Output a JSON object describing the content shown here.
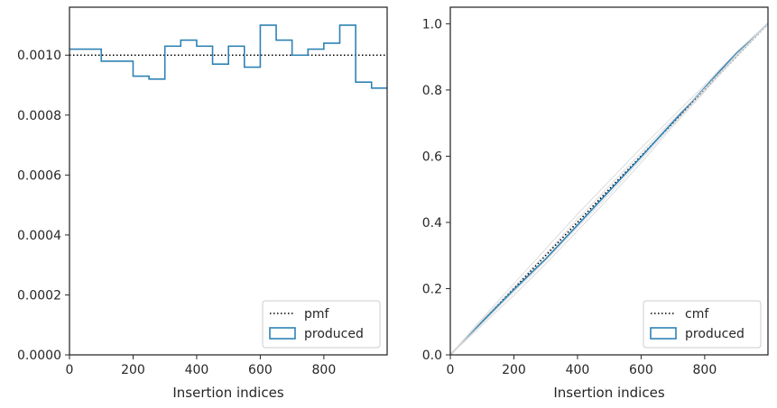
{
  "chart_data": [
    {
      "type": "line",
      "subtype": "step-histogram",
      "title": "",
      "xlabel": "Insertion indices",
      "ylabel": "",
      "xlim": [
        0,
        999
      ],
      "ylim": [
        0,
        0.00116
      ],
      "xticks": [
        0,
        200,
        400,
        600,
        800
      ],
      "yticks": [
        0.0,
        0.0002,
        0.0004,
        0.0006,
        0.0008,
        0.001
      ],
      "xtick_labels": [
        "0",
        "200",
        "400",
        "600",
        "800"
      ],
      "ytick_labels": [
        "0.0000",
        "0.0002",
        "0.0004",
        "0.0006",
        "0.0008",
        "0.0010"
      ],
      "grid": false,
      "legend_position": "lower-right",
      "legend": [
        "pmf",
        "produced"
      ],
      "series": [
        {
          "name": "pmf",
          "style": "dotted",
          "color": "#000000",
          "x": [
            0,
            999
          ],
          "y": [
            0.001,
            0.001
          ]
        },
        {
          "name": "produced",
          "style": "step",
          "color": "#2e82b5",
          "bin_edges": [
            0,
            100,
            200,
            250,
            300,
            350,
            400,
            450,
            500,
            550,
            600,
            650,
            700,
            750,
            800,
            850,
            900,
            950,
            999
          ],
          "values": [
            0.00102,
            0.00098,
            0.00093,
            0.00092,
            0.00103,
            0.00105,
            0.00103,
            0.00097,
            0.00103,
            0.00096,
            0.0011,
            0.00105,
            0.001,
            0.00102,
            0.00104,
            0.0011,
            0.00091,
            0.00089
          ]
        }
      ]
    },
    {
      "type": "line",
      "title": "",
      "xlabel": "Insertion indices",
      "ylabel": "",
      "xlim": [
        0,
        999
      ],
      "ylim": [
        0,
        1.05
      ],
      "xticks": [
        0,
        200,
        400,
        600,
        800
      ],
      "yticks": [
        0.0,
        0.2,
        0.4,
        0.6,
        0.8,
        1.0
      ],
      "xtick_labels": [
        "0",
        "200",
        "400",
        "600",
        "800"
      ],
      "ytick_labels": [
        "0.0",
        "0.2",
        "0.4",
        "0.6",
        "0.8",
        "1.0"
      ],
      "grid": false,
      "legend_position": "lower-right",
      "legend": [
        "cmf",
        "produced"
      ],
      "series": [
        {
          "name": "cmf",
          "style": "dotted",
          "color": "#000000",
          "x": [
            0,
            999
          ],
          "y": [
            0,
            1
          ]
        },
        {
          "name": "produced",
          "style": "solid",
          "color": "#2e82b5",
          "x": [
            0,
            100,
            200,
            300,
            400,
            500,
            600,
            700,
            800,
            900,
            999
          ],
          "y": [
            0,
            0.1,
            0.197,
            0.29,
            0.392,
            0.495,
            0.598,
            0.703,
            0.807,
            0.912,
            1.0
          ]
        },
        {
          "name": "",
          "style": "light-gray",
          "color": "#d9d9d9",
          "x": [
            0,
            100,
            200,
            300,
            400,
            500,
            600,
            700,
            800,
            900,
            999
          ],
          "y": [
            0,
            0.11,
            0.215,
            0.32,
            0.425,
            0.525,
            0.625,
            0.72,
            0.815,
            0.915,
            1.0
          ]
        },
        {
          "name": "",
          "style": "light-gray",
          "color": "#d9d9d9",
          "x": [
            0,
            100,
            200,
            300,
            400,
            500,
            600,
            700,
            800,
            900,
            999
          ],
          "y": [
            0,
            0.09,
            0.18,
            0.275,
            0.375,
            0.475,
            0.58,
            0.69,
            0.795,
            0.905,
            1.0
          ]
        },
        {
          "name": "",
          "style": "light-gray",
          "color": "#d9d9d9",
          "x": [
            0,
            100,
            200,
            300,
            400,
            500,
            600,
            700,
            800,
            900,
            999
          ],
          "y": [
            0,
            0.105,
            0.205,
            0.305,
            0.41,
            0.51,
            0.61,
            0.71,
            0.805,
            0.905,
            1.0
          ]
        },
        {
          "name": "",
          "style": "light-gray",
          "color": "#d9d9d9",
          "x": [
            0,
            100,
            200,
            300,
            400,
            500,
            600,
            700,
            800,
            900,
            999
          ],
          "y": [
            0,
            0.095,
            0.19,
            0.285,
            0.385,
            0.485,
            0.59,
            0.695,
            0.8,
            0.9,
            1.0
          ]
        }
      ]
    }
  ]
}
